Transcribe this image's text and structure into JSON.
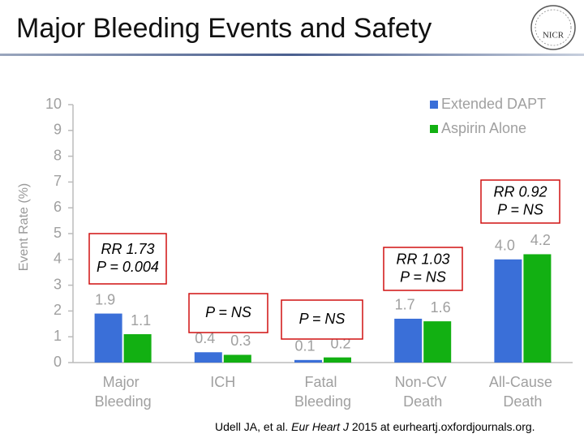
{
  "chart_data": {
    "type": "bar",
    "title": "Major Bleeding Events and Safety",
    "logo_text": "NICR",
    "y_label": "Event Rate (%)",
    "categories": [
      "Major Bleeding",
      "ICH",
      "Fatal Bleeding",
      "Non-CV Death",
      "All-Cause Death"
    ],
    "series": [
      {
        "name": "Extended DAPT",
        "color": "#3a6fd8",
        "values": [
          1.9,
          0.4,
          0.1,
          1.7,
          4.0
        ],
        "value_labels": [
          "1.9",
          "0.4",
          "0.1",
          "1.7",
          "4.0"
        ]
      },
      {
        "name": "Aspirin Alone",
        "color": "#12b012",
        "values": [
          1.1,
          0.3,
          0.2,
          1.6,
          4.2
        ],
        "value_labels": [
          "1.1",
          "0.3",
          "0.2",
          "1.6",
          "4.2"
        ]
      }
    ],
    "ylim": [
      0,
      10
    ],
    "yticks": [
      0,
      1,
      2,
      3,
      4,
      5,
      6,
      7,
      8,
      9,
      10
    ],
    "legend": "top-right",
    "annotations": [
      {
        "lines": [
          "RR 1.73",
          "P = 0.004"
        ]
      },
      {
        "lines": [
          "P = NS"
        ]
      },
      {
        "lines": [
          "P = NS"
        ]
      },
      {
        "lines": [
          "RR 1.03",
          "P = NS"
        ]
      },
      {
        "lines": [
          "RR 0.92",
          "P = NS"
        ]
      }
    ],
    "citation": {
      "authors": "Udell JA, et al. ",
      "journal": "Eur Heart J",
      "rest": " 2015 at eurheartj.oxfordjournals.org."
    }
  }
}
